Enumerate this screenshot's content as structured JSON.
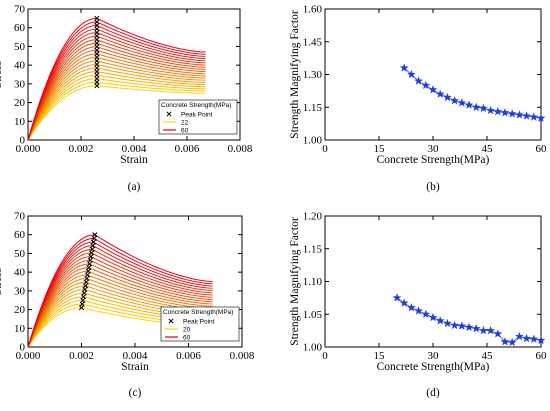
{
  "chart_data": [
    {
      "panel": "a",
      "type": "line",
      "caption": "(a)",
      "xlabel": "Strain",
      "ylabel": "Stress",
      "xlim": [
        0,
        0.008
      ],
      "ylim": [
        0,
        70
      ],
      "xticks": [
        "0.000",
        "0.002",
        "0.004",
        "0.006",
        "0.008"
      ],
      "yticks": [
        "0",
        "10",
        "20",
        "30",
        "40",
        "50",
        "60",
        "70"
      ],
      "legend": {
        "title": "Concrete Strength(MPa)",
        "entries": [
          "Peak Point",
          "22",
          "60"
        ],
        "placement": "lower-right"
      },
      "colors": {
        "low": "#ffd400",
        "high": "#e0001a",
        "marker": "#000000"
      },
      "curve_family": {
        "strength_from": 22,
        "strength_to": 60,
        "curve_count": 20,
        "peak_stress_range": [
          29,
          65
        ],
        "peak_strain": 0.0026,
        "end_strain": 0.0067,
        "end_stress_range": [
          25,
          47
        ]
      }
    },
    {
      "panel": "b",
      "type": "scatter",
      "caption": "(b)",
      "xlabel": "Concrete Strength(MPa)",
      "ylabel": "Strength Magnifying Factor",
      "xlim": [
        0,
        60
      ],
      "ylim": [
        1.0,
        1.6
      ],
      "xticks": [
        "0",
        "15",
        "30",
        "45",
        "60"
      ],
      "yticks": [
        "1.00",
        "1.15",
        "1.30",
        "1.45",
        "1.60"
      ],
      "color": "#1f3ee0",
      "x": [
        22,
        24,
        26,
        28,
        30,
        32,
        34,
        36,
        38,
        40,
        42,
        44,
        46,
        48,
        50,
        52,
        54,
        56,
        58,
        60
      ],
      "y": [
        1.33,
        1.3,
        1.27,
        1.25,
        1.23,
        1.21,
        1.195,
        1.18,
        1.17,
        1.16,
        1.15,
        1.145,
        1.135,
        1.13,
        1.125,
        1.12,
        1.115,
        1.11,
        1.105,
        1.1
      ]
    },
    {
      "panel": "c",
      "type": "line",
      "caption": "(c)",
      "xlabel": "Strain",
      "ylabel": "Stress",
      "xlim": [
        0,
        0.008
      ],
      "ylim": [
        0,
        70
      ],
      "xticks": [
        "0.000",
        "0.002",
        "0.004",
        "0.006",
        "0.008"
      ],
      "yticks": [
        "0",
        "10",
        "20",
        "30",
        "40",
        "50",
        "60",
        "70"
      ],
      "legend": {
        "title": "Concrete Strength(MPa)",
        "entries": [
          "Peak Point",
          "20",
          "60"
        ],
        "placement": "lower-right"
      },
      "colors": {
        "low": "#ffd400",
        "high": "#e0001a",
        "marker": "#000000"
      },
      "curve_family": {
        "strength_from": 20,
        "strength_to": 60,
        "curve_count": 21,
        "peak_stress_range": [
          21,
          60
        ],
        "peak_strain_range": [
          0.002,
          0.0025
        ],
        "end_strain": 0.0069,
        "end_stress_range": [
          11,
          35
        ]
      }
    },
    {
      "panel": "d",
      "type": "scatter",
      "caption": "(d)",
      "xlabel": "Concrete Strength(MPa)",
      "ylabel": "Strength Magnifying Factor",
      "xlim": [
        0,
        60
      ],
      "ylim": [
        1.0,
        1.2
      ],
      "xticks": [
        "0",
        "15",
        "30",
        "45",
        "60"
      ],
      "yticks": [
        "1.00",
        "1.05",
        "1.10",
        "1.15",
        "1.20"
      ],
      "color": "#1f3ee0",
      "x": [
        20,
        22,
        24,
        26,
        28,
        30,
        32,
        34,
        36,
        38,
        40,
        42,
        44,
        46,
        48,
        50,
        52,
        54,
        56,
        58,
        60
      ],
      "y": [
        1.075,
        1.067,
        1.06,
        1.055,
        1.05,
        1.045,
        1.04,
        1.036,
        1.033,
        1.032,
        1.03,
        1.028,
        1.025,
        1.025,
        1.02,
        1.008,
        1.007,
        1.016,
        1.013,
        1.012,
        1.01
      ]
    }
  ]
}
